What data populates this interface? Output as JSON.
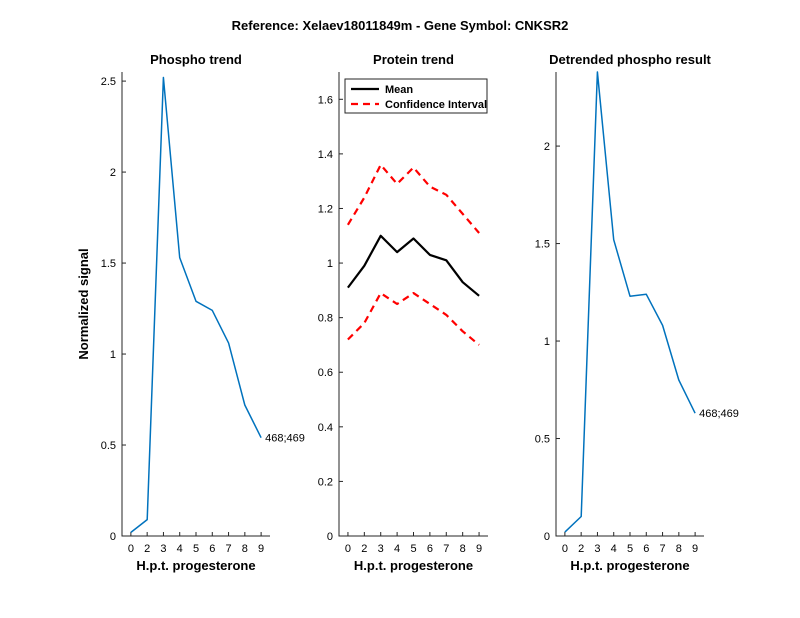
{
  "figure": {
    "suptitle": "Reference:  Xelaev18011849m - Gene Symbol:  CNKSR2",
    "colors": {
      "phospho": "#0072BD",
      "mean": "#000000",
      "ci": "#FF0000"
    }
  },
  "chart_data": [
    {
      "type": "line",
      "title": "Phospho trend",
      "xlabel": "H.p.t. progesterone",
      "ylabel": "Normalized signal",
      "x": [
        0,
        2,
        3,
        4,
        5,
        6,
        7,
        8,
        9
      ],
      "xticks": [
        "0",
        "2",
        "3",
        "4",
        "5",
        "6",
        "7",
        "8",
        "9"
      ],
      "ylim": [
        0,
        2.55
      ],
      "yticks": [
        0,
        0.5,
        1,
        1.5,
        2,
        2.5
      ],
      "ytick_labels": [
        "0",
        "0.5",
        "1",
        "1.5",
        "2",
        "2.5"
      ],
      "series": [
        {
          "values": [
            0.02,
            0.09,
            2.52,
            1.53,
            1.29,
            1.24,
            1.06,
            0.72,
            0.54
          ]
        }
      ],
      "annotation": "468;469"
    },
    {
      "type": "line",
      "title": "Protein trend",
      "xlabel": "H.p.t. progesterone",
      "ylabel": "",
      "x": [
        0,
        2,
        3,
        4,
        5,
        6,
        7,
        8,
        9
      ],
      "xticks": [
        "0",
        "2",
        "3",
        "4",
        "5",
        "6",
        "7",
        "8",
        "9"
      ],
      "ylim": [
        0,
        1.7
      ],
      "yticks": [
        0,
        0.2,
        0.4,
        0.6,
        0.8,
        1,
        1.2,
        1.4,
        1.6
      ],
      "ytick_labels": [
        "0",
        "0.2",
        "0.4",
        "0.6",
        "0.8",
        "1",
        "1.2",
        "1.4",
        "1.6"
      ],
      "series": [
        {
          "name": "Mean",
          "values": [
            0.91,
            0.99,
            1.1,
            1.04,
            1.09,
            1.03,
            1.01,
            0.93,
            0.88
          ]
        },
        {
          "name": "Confidence Interval",
          "values": [
            1.14,
            1.24,
            1.36,
            1.29,
            1.35,
            1.28,
            1.25,
            1.18,
            1.11
          ]
        },
        {
          "values": [
            0.72,
            0.78,
            0.89,
            0.85,
            0.89,
            0.85,
            0.81,
            0.75,
            0.7
          ]
        }
      ],
      "legend": {
        "position": "top-left",
        "entries": [
          "Mean",
          "Confidence Interval"
        ]
      }
    },
    {
      "type": "line",
      "title": "Detrended phospho result",
      "xlabel": "H.p.t. progesterone",
      "ylabel": "",
      "x": [
        0,
        2,
        3,
        4,
        5,
        6,
        7,
        8,
        9
      ],
      "xticks": [
        "0",
        "2",
        "3",
        "4",
        "5",
        "6",
        "7",
        "8",
        "9"
      ],
      "ylim": [
        0,
        2.38
      ],
      "yticks": [
        0,
        0.5,
        1,
        1.5,
        2
      ],
      "ytick_labels": [
        "0",
        "0.5",
        "1",
        "1.5",
        "2"
      ],
      "series": [
        {
          "values": [
            0.02,
            0.1,
            2.38,
            1.52,
            1.23,
            1.24,
            1.08,
            0.8,
            0.63
          ]
        }
      ],
      "annotation": "468;469"
    }
  ]
}
